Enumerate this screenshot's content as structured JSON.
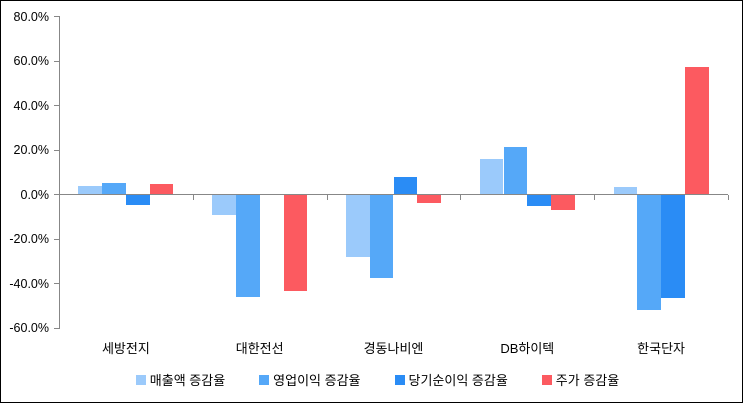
{
  "chart_data": {
    "type": "bar",
    "title": "",
    "categories": [
      "세방전지",
      "대한전선",
      "경동나비엔",
      "DB하이텍",
      "한국단자"
    ],
    "series": [
      {
        "name": "매출액 증감율",
        "color": "#9BCAFB",
        "values": [
          4.0,
          -9.0,
          -28.0,
          16.0,
          3.5
        ]
      },
      {
        "name": "영업이익 증감율",
        "color": "#55A8F8",
        "values": [
          5.0,
          -46.0,
          -37.5,
          21.5,
          -52.0
        ]
      },
      {
        "name": "당기순이익 증감율",
        "color": "#2A8CF5",
        "values": [
          -4.5,
          0.0,
          8.0,
          -5.0,
          -46.5
        ]
      },
      {
        "name": "주가 증감율",
        "color": "#FC5A60",
        "values": [
          4.5,
          -43.5,
          -4.0,
          -7.0,
          57.5
        ]
      }
    ],
    "y_axis": {
      "min": -60,
      "max": 80,
      "tick_step": 20,
      "tick_labels": [
        "80.0%",
        "60.0%",
        "40.0%",
        "20.0%",
        "0.0%",
        "-20.0%",
        "-40.0%",
        "-60.0%"
      ],
      "format": "percent"
    },
    "xlabel": "",
    "ylabel": "",
    "grid": false,
    "legend_position": "bottom",
    "axis_color": "#878787",
    "text_color": "#000000",
    "background_color": "#FFFFFF"
  }
}
